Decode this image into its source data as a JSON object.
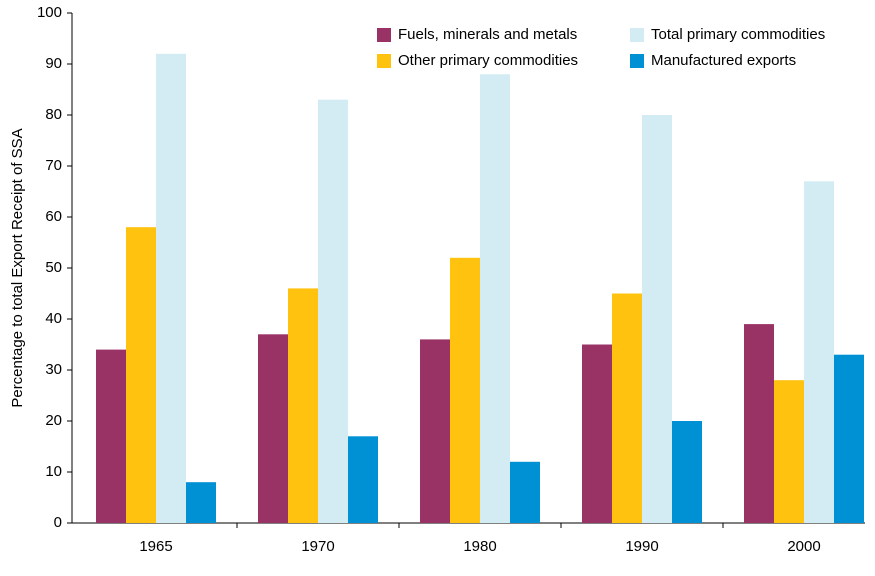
{
  "chart_data": {
    "type": "bar",
    "y_label": "Percentage to total Export Receipt of SSA",
    "categories": [
      "1965",
      "1970",
      "1980",
      "1990",
      "2000"
    ],
    "series": [
      {
        "name": "Fuels, minerals and metals",
        "color": "#993366",
        "values": [
          34,
          37,
          36,
          35,
          39
        ]
      },
      {
        "name": "Other primary commodities",
        "color": "#ffc20e",
        "values": [
          58,
          46,
          52,
          45,
          28
        ]
      },
      {
        "name": "Total primary commodities",
        "color": "#d3ecf3",
        "values": [
          92,
          83,
          88,
          80,
          67
        ]
      },
      {
        "name": "Manufactured exports",
        "color": "#0090d4",
        "values": [
          8,
          17,
          12,
          20,
          33
        ]
      }
    ],
    "ylim": [
      0,
      100
    ],
    "yticks": [
      0,
      10,
      20,
      30,
      40,
      50,
      60,
      70,
      80,
      90,
      100
    ],
    "legend": "top-right",
    "grid": false
  }
}
